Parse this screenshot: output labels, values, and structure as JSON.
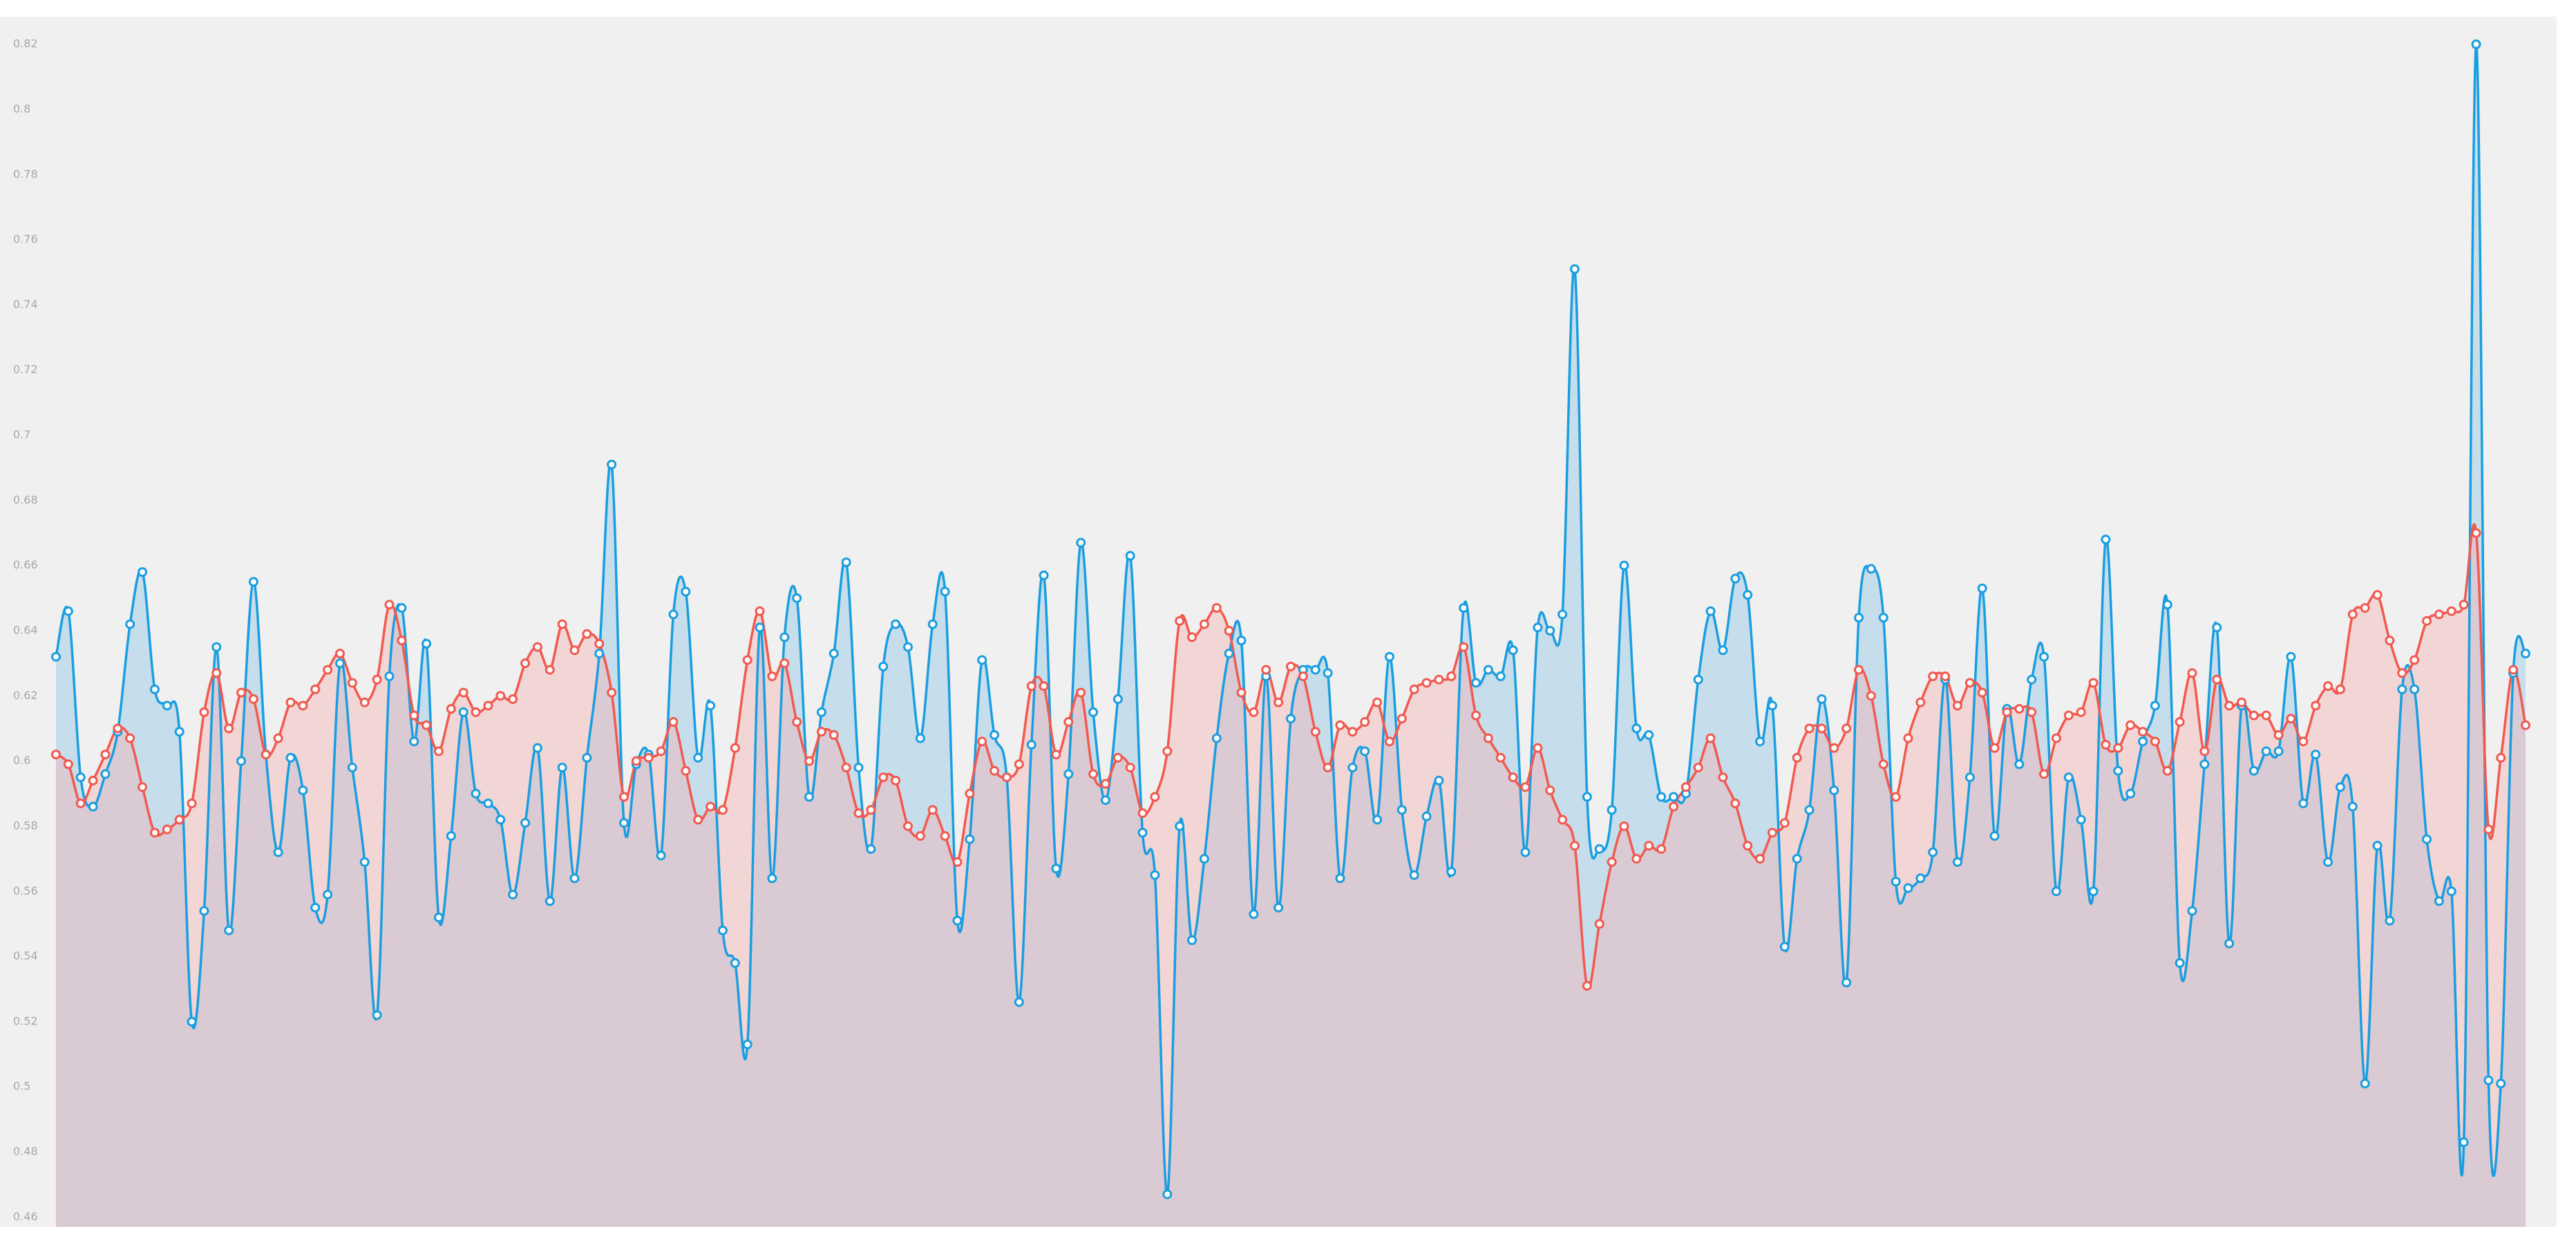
{
  "chart_data": {
    "type": "area",
    "ylim": [
      0.457,
      0.823
    ],
    "yticks": [
      0.46,
      0.48,
      0.5,
      0.52,
      0.54,
      0.56,
      0.58,
      0.6,
      0.62,
      0.64,
      0.66,
      0.68,
      0.7,
      0.72,
      0.74,
      0.76,
      0.78,
      0.8,
      0.82
    ],
    "grid": false,
    "series": [
      {
        "color": "#1a9ee0",
        "fill": "rgba(140,196,232,0.42)",
        "values": [
          0.632,
          0.646,
          0.595,
          0.586,
          0.596,
          0.609,
          0.642,
          0.658,
          0.622,
          0.617,
          0.609,
          0.52,
          0.554,
          0.635,
          0.548,
          0.6,
          0.655,
          0.602,
          0.572,
          0.601,
          0.591,
          0.555,
          0.559,
          0.63,
          0.598,
          0.569,
          0.522,
          0.626,
          0.647,
          0.606,
          0.636,
          0.552,
          0.577,
          0.615,
          0.59,
          0.587,
          0.582,
          0.559,
          0.581,
          0.604,
          0.557,
          0.598,
          0.564,
          0.601,
          0.633,
          0.691,
          0.581,
          0.599,
          0.602,
          0.571,
          0.645,
          0.652,
          0.601,
          0.617,
          0.548,
          0.538,
          0.513,
          0.641,
          0.564,
          0.638,
          0.65,
          0.589,
          0.615,
          0.633,
          0.661,
          0.598,
          0.573,
          0.629,
          0.642,
          0.635,
          0.607,
          0.642,
          0.652,
          0.551,
          0.576,
          0.631,
          0.608,
          0.595,
          0.526,
          0.605,
          0.657,
          0.567,
          0.596,
          0.667,
          0.615,
          0.588,
          0.619,
          0.663,
          0.578,
          0.565,
          0.467,
          0.58,
          0.545,
          0.57,
          0.607,
          0.633,
          0.637,
          0.553,
          0.626,
          0.555,
          0.613,
          0.628,
          0.628,
          0.627,
          0.564,
          0.598,
          0.603,
          0.582,
          0.632,
          0.585,
          0.565,
          0.583,
          0.594,
          0.566,
          0.647,
          0.624,
          0.628,
          0.626,
          0.634,
          0.572,
          0.641,
          0.64,
          0.645,
          0.751,
          0.589,
          0.573,
          0.585,
          0.66,
          0.61,
          0.608,
          0.589,
          0.589,
          0.59,
          0.625,
          0.646,
          0.634,
          0.656,
          0.651,
          0.606,
          0.617,
          0.543,
          0.57,
          0.585,
          0.619,
          0.591,
          0.532,
          0.644,
          0.659,
          0.644,
          0.563,
          0.561,
          0.564,
          0.572,
          0.625,
          0.569,
          0.595,
          0.653,
          0.577,
          0.616,
          0.599,
          0.625,
          0.632,
          0.56,
          0.595,
          0.582,
          0.56,
          0.668,
          0.597,
          0.59,
          0.606,
          0.617,
          0.648,
          0.538,
          0.554,
          0.599,
          0.641,
          0.544,
          0.617,
          0.597,
          0.603,
          0.603,
          0.632,
          0.587,
          0.602,
          0.569,
          0.592,
          0.586,
          0.501,
          0.574,
          0.551,
          0.622,
          0.622,
          0.576,
          0.557,
          0.56,
          0.483,
          0.82,
          0.502,
          0.501,
          0.627,
          0.633
        ]
      },
      {
        "color": "#f25a50",
        "fill": "rgba(246,176,176,0.42)",
        "values": [
          0.602,
          0.599,
          0.587,
          0.594,
          0.602,
          0.61,
          0.607,
          0.592,
          0.578,
          0.579,
          0.582,
          0.587,
          0.615,
          0.627,
          0.61,
          0.621,
          0.619,
          0.602,
          0.607,
          0.618,
          0.617,
          0.622,
          0.628,
          0.633,
          0.624,
          0.618,
          0.625,
          0.648,
          0.637,
          0.614,
          0.611,
          0.603,
          0.616,
          0.621,
          0.615,
          0.617,
          0.62,
          0.619,
          0.63,
          0.635,
          0.628,
          0.642,
          0.634,
          0.639,
          0.636,
          0.621,
          0.589,
          0.6,
          0.601,
          0.603,
          0.612,
          0.597,
          0.582,
          0.586,
          0.585,
          0.604,
          0.631,
          0.646,
          0.626,
          0.63,
          0.612,
          0.6,
          0.609,
          0.608,
          0.598,
          0.584,
          0.585,
          0.595,
          0.594,
          0.58,
          0.577,
          0.585,
          0.577,
          0.569,
          0.59,
          0.606,
          0.597,
          0.595,
          0.599,
          0.623,
          0.623,
          0.602,
          0.612,
          0.621,
          0.596,
          0.593,
          0.601,
          0.598,
          0.584,
          0.589,
          0.603,
          0.643,
          0.638,
          0.642,
          0.647,
          0.64,
          0.621,
          0.615,
          0.628,
          0.618,
          0.629,
          0.626,
          0.609,
          0.598,
          0.611,
          0.609,
          0.612,
          0.618,
          0.606,
          0.613,
          0.622,
          0.624,
          0.625,
          0.626,
          0.635,
          0.614,
          0.607,
          0.601,
          0.595,
          0.592,
          0.604,
          0.591,
          0.582,
          0.574,
          0.531,
          0.55,
          0.569,
          0.58,
          0.57,
          0.574,
          0.573,
          0.586,
          0.592,
          0.598,
          0.607,
          0.595,
          0.587,
          0.574,
          0.57,
          0.578,
          0.581,
          0.601,
          0.61,
          0.61,
          0.604,
          0.61,
          0.628,
          0.62,
          0.599,
          0.589,
          0.607,
          0.618,
          0.626,
          0.626,
          0.617,
          0.624,
          0.621,
          0.604,
          0.615,
          0.616,
          0.615,
          0.596,
          0.607,
          0.614,
          0.615,
          0.624,
          0.605,
          0.604,
          0.611,
          0.609,
          0.606,
          0.597,
          0.612,
          0.627,
          0.603,
          0.625,
          0.617,
          0.618,
          0.614,
          0.614,
          0.608,
          0.613,
          0.606,
          0.617,
          0.623,
          0.622,
          0.645,
          0.647,
          0.651,
          0.637,
          0.627,
          0.631,
          0.643,
          0.645,
          0.646,
          0.648,
          0.67,
          0.579,
          0.601,
          0.628,
          0.611
        ]
      }
    ]
  }
}
